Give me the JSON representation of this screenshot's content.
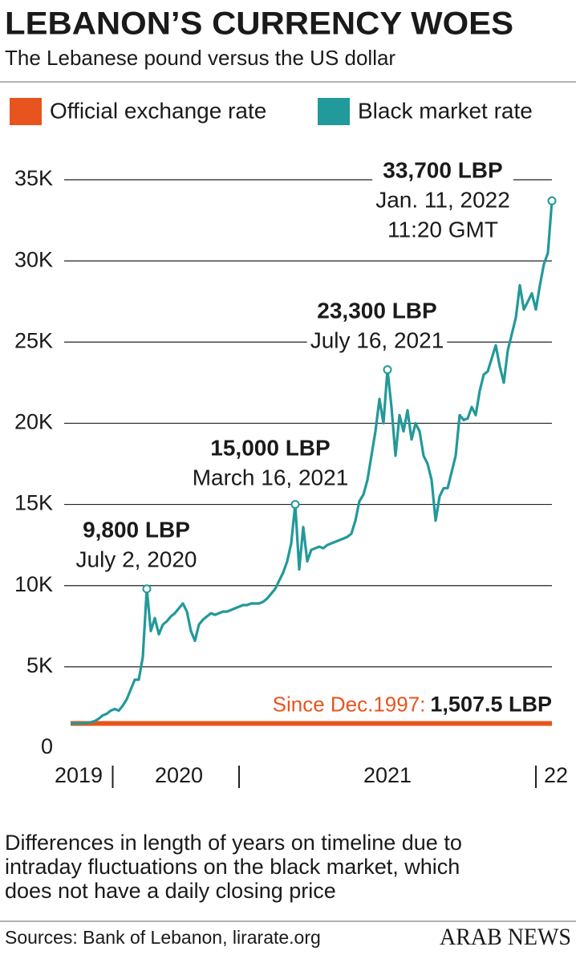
{
  "chart_data": {
    "type": "line",
    "title": "LEBANON’S CURRENCY WOES",
    "subtitle": "The Lebanese pound versus the US dollar",
    "legend_position": "top",
    "ylim": [
      0,
      35000
    ],
    "yticks": [
      0,
      {
        "value": 5000,
        "label": "5K"
      },
      {
        "value": 10000,
        "label": "10K"
      },
      {
        "value": 15000,
        "label": "15K"
      },
      {
        "value": 20000,
        "label": "20K"
      },
      {
        "value": 25000,
        "label": "25K"
      },
      {
        "value": 30000,
        "label": "30K"
      },
      {
        "value": 35000,
        "label": "35K"
      }
    ],
    "grid": true,
    "xlim": [
      0,
      120
    ],
    "xticks": [
      {
        "value": 2,
        "label": "2019"
      },
      {
        "value": 27,
        "label": "2020"
      },
      {
        "value": 79,
        "label": "2021"
      },
      {
        "value": 121,
        "label": "22"
      }
    ],
    "year_boundaries": [
      10.5,
      42,
      116
    ],
    "series": [
      {
        "name": "Official exchange rate",
        "color": "#e8541e",
        "note": "Since Dec.1997:",
        "value_label": "1,507.5 LBP",
        "values": [
          1507.5,
          1507.5,
          1507.5,
          1507.5,
          1507.5,
          1507.5,
          1507.5,
          1507.5,
          1507.5,
          1507.5,
          1507.5,
          1507.5,
          1507.5,
          1507.5,
          1507.5,
          1507.5,
          1507.5,
          1507.5,
          1507.5,
          1507.5,
          1507.5,
          1507.5,
          1507.5,
          1507.5,
          1507.5,
          1507.5,
          1507.5,
          1507.5,
          1507.5,
          1507.5,
          1507.5,
          1507.5,
          1507.5,
          1507.5,
          1507.5,
          1507.5,
          1507.5,
          1507.5,
          1507.5,
          1507.5,
          1507.5,
          1507.5,
          1507.5,
          1507.5,
          1507.5,
          1507.5,
          1507.5,
          1507.5,
          1507.5,
          1507.5,
          1507.5,
          1507.5,
          1507.5,
          1507.5,
          1507.5,
          1507.5,
          1507.5,
          1507.5,
          1507.5,
          1507.5,
          1507.5,
          1507.5,
          1507.5,
          1507.5,
          1507.5,
          1507.5,
          1507.5,
          1507.5,
          1507.5,
          1507.5,
          1507.5,
          1507.5,
          1507.5,
          1507.5,
          1507.5,
          1507.5,
          1507.5,
          1507.5,
          1507.5,
          1507.5,
          1507.5,
          1507.5,
          1507.5,
          1507.5,
          1507.5,
          1507.5,
          1507.5,
          1507.5,
          1507.5,
          1507.5,
          1507.5,
          1507.5,
          1507.5,
          1507.5,
          1507.5,
          1507.5,
          1507.5,
          1507.5,
          1507.5,
          1507.5,
          1507.5,
          1507.5,
          1507.5,
          1507.5,
          1507.5,
          1507.5,
          1507.5,
          1507.5,
          1507.5,
          1507.5,
          1507.5,
          1507.5,
          1507.5,
          1507.5,
          1507.5,
          1507.5,
          1507.5,
          1507.5,
          1507.5,
          1507.5,
          1507.5
        ]
      },
      {
        "name": "Black market rate",
        "color": "#22999a",
        "values": [
          1510,
          1510,
          1515,
          1520,
          1540,
          1580,
          1650,
          1800,
          2000,
          2100,
          2300,
          2400,
          2300,
          2600,
          3000,
          3600,
          4200,
          4200,
          5600,
          9800,
          7200,
          8000,
          7000,
          7600,
          7800,
          8100,
          8300,
          8600,
          8900,
          8400,
          7200,
          6600,
          7600,
          7900,
          8100,
          8300,
          8200,
          8300,
          8400,
          8400,
          8500,
          8600,
          8700,
          8800,
          8800,
          8900,
          8900,
          8900,
          9000,
          9200,
          9500,
          9800,
          10300,
          10800,
          11500,
          12600,
          15000,
          11000,
          13600,
          11500,
          12200,
          12300,
          12400,
          12300,
          12500,
          12600,
          12700,
          12800,
          12900,
          13000,
          13200,
          14000,
          15200,
          15600,
          16500,
          18000,
          19500,
          21500,
          20000,
          23300,
          21000,
          18000,
          20500,
          19500,
          20800,
          19000,
          20000,
          19500,
          18000,
          17500,
          16500,
          14000,
          15500,
          16000,
          16000,
          17000,
          18000,
          20500,
          20200,
          20300,
          21000,
          20500,
          22000,
          23000,
          23200,
          24000,
          24800,
          23500,
          22500,
          24500,
          25500,
          26500,
          28500,
          27000,
          27500,
          28000,
          27000,
          28500,
          29800,
          30500,
          33700
        ]
      }
    ],
    "annotations": [
      {
        "x": 19,
        "label": "9,800 LBP",
        "date": "July 2, 2020"
      },
      {
        "x": 56,
        "label": "15,000 LBP",
        "date": "March 16, 2021"
      },
      {
        "x": 79,
        "label": "23,300 LBP",
        "date": "July 16, 2021"
      },
      {
        "x": 120,
        "label": "33,700 LBP",
        "date": "Jan. 11, 2022",
        "time": "11:20 GMT"
      }
    ],
    "footnote": [
      "Differences in length of years on timeline due to",
      "intraday fluctuations  on the black market, which",
      "does not have a daily closing price"
    ],
    "source": "Sources: Bank of Lebanon, lirarate.org",
    "publisher": "ARAB NEWS"
  }
}
